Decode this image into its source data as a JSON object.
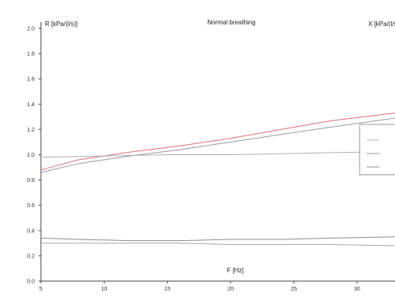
{
  "chart_data": {
    "type": "line",
    "title": "Normal breathing",
    "ylabel_left": "R [kPa/(l/s)]",
    "ylabel_right": "X [kPa/(l/s)]",
    "xlabel": "F [Hz]",
    "x_ticks": [
      "5",
      "10",
      "15",
      "20",
      "25",
      "30"
    ],
    "y_ticks": [
      "0.0",
      "0.2",
      "0.4",
      "0.6",
      "0.8",
      "1.0",
      "1.2",
      "1.4",
      "1.6",
      "1.8",
      "2.0"
    ],
    "xlim": [
      5,
      33
    ],
    "ylim": [
      0,
      2.0
    ],
    "grid": false,
    "legend": "right",
    "legend_entries": [
      "",
      "",
      ""
    ],
    "series": [
      {
        "color": "#e07070",
        "x": [
          5,
          8,
          12,
          16,
          20,
          24,
          28,
          33
        ],
        "values": [
          0.88,
          0.96,
          1.02,
          1.07,
          1.13,
          1.2,
          1.27,
          1.33
        ]
      },
      {
        "color": "#9a9a9a",
        "x": [
          5,
          8,
          12,
          16,
          20,
          24,
          28,
          33
        ],
        "values": [
          0.86,
          0.93,
          0.99,
          1.04,
          1.1,
          1.16,
          1.22,
          1.29
        ]
      },
      {
        "color": "#b0b0b0",
        "x": [
          5,
          10,
          15,
          20,
          25,
          30,
          33
        ],
        "values": [
          0.98,
          0.99,
          1.0,
          1.0,
          1.01,
          1.02,
          1.02
        ]
      },
      {
        "color": "#8c8c8c",
        "x": [
          5,
          8,
          12,
          16,
          20,
          24,
          28,
          33
        ],
        "values": [
          0.34,
          0.33,
          0.32,
          0.32,
          0.33,
          0.33,
          0.34,
          0.35
        ]
      },
      {
        "color": "#a8a8a8",
        "x": [
          5,
          8,
          12,
          16,
          20,
          24,
          28,
          33
        ],
        "values": [
          0.3,
          0.3,
          0.3,
          0.3,
          0.29,
          0.29,
          0.29,
          0.28
        ]
      }
    ]
  }
}
